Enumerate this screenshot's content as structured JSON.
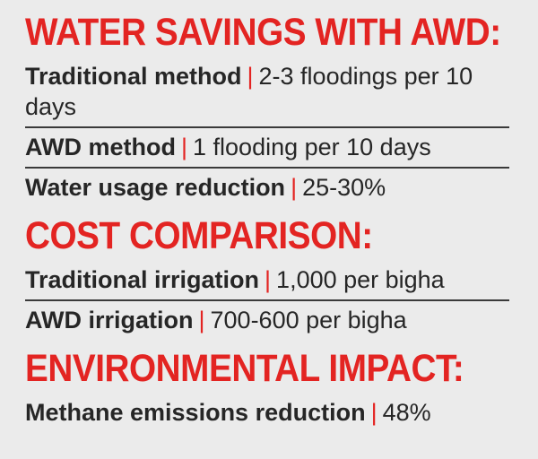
{
  "accent_color": "#e32422",
  "separator": "|",
  "sections": [
    {
      "heading": "WATER SAVINGS WITH AWD:",
      "rows": [
        {
          "label": "Traditional method",
          "value": "2-3 floodings per 10 days"
        },
        {
          "label": "AWD method",
          "value": "1 flooding per 10 days"
        },
        {
          "label": "Water usage reduction",
          "value": "25-30%"
        }
      ]
    },
    {
      "heading": "COST COMPARISON:",
      "rows": [
        {
          "label": "Traditional irrigation",
          "value": "1,000 per bigha"
        },
        {
          "label": "AWD irrigation",
          "value": "700-600 per bigha"
        }
      ]
    },
    {
      "heading": "ENVIRONMENTAL IMPACT:",
      "rows": [
        {
          "label": "Methane emissions reduction",
          "value": "48%"
        }
      ]
    }
  ]
}
